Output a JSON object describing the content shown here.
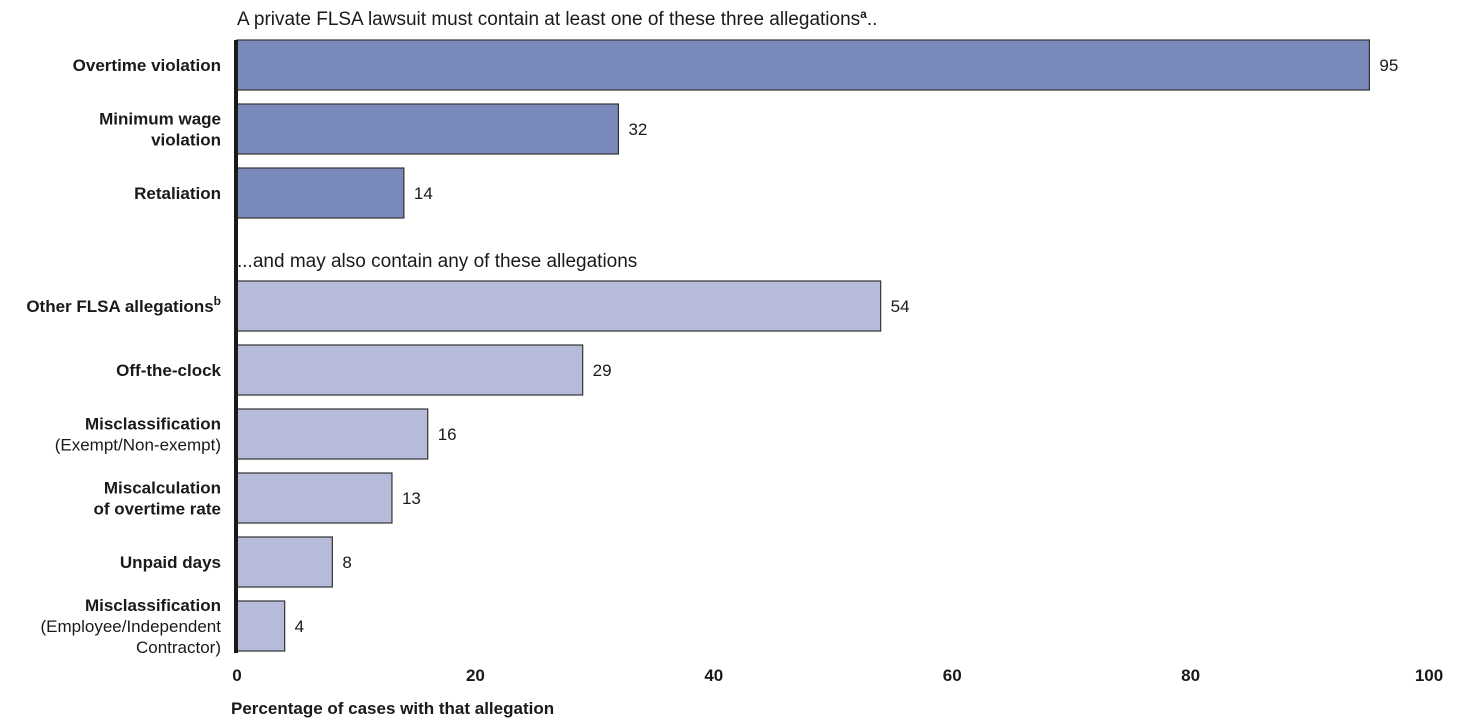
{
  "chart_data": {
    "type": "bar",
    "orientation": "horizontal",
    "xlabel": "Percentage of cases with that allegation",
    "xlim": [
      0,
      100
    ],
    "xticks": [
      0,
      20,
      40,
      60,
      80,
      100
    ],
    "grid": false,
    "colors": {
      "required": "#7889ba",
      "optional": "#b6bbd9",
      "outline": "#333333",
      "axis": "#1a1a1a"
    },
    "groups": [
      {
        "title": "A private FLSA lawsuit must contain at least one of these three allegations",
        "title_sup": "a",
        "title_suffix": "..",
        "color_key": "required",
        "items": [
          {
            "label_bold": [
              "Overtime violation"
            ],
            "label_normal": [],
            "value": 95
          },
          {
            "label_bold": [
              "Minimum wage",
              "violation"
            ],
            "label_normal": [],
            "value": 32
          },
          {
            "label_bold": [
              "Retaliation"
            ],
            "label_normal": [],
            "value": 14
          }
        ]
      },
      {
        "title": "...and may also contain any of these allegations",
        "title_sup": "",
        "title_suffix": "",
        "color_key": "optional",
        "items": [
          {
            "label_bold": [
              "Other FLSA allegations"
            ],
            "label_sup": "b",
            "label_normal": [],
            "value": 54
          },
          {
            "label_bold": [
              "Off-the-clock"
            ],
            "label_normal": [],
            "value": 29
          },
          {
            "label_bold": [
              "Misclassification"
            ],
            "label_normal": [
              "(Exempt/Non-exempt)"
            ],
            "value": 16
          },
          {
            "label_bold": [
              "Miscalculation",
              "of overtime rate"
            ],
            "label_normal": [],
            "value": 13
          },
          {
            "label_bold": [
              "Unpaid days"
            ],
            "label_normal": [],
            "value": 8
          },
          {
            "label_bold": [
              "Misclassification"
            ],
            "label_normal": [
              "(Employee/Independent",
              "Contractor)"
            ],
            "value": 4
          }
        ]
      }
    ]
  }
}
